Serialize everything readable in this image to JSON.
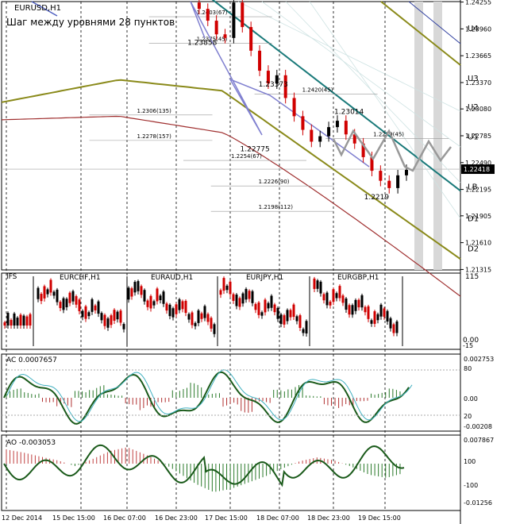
{
  "window": {
    "symbol_title": "EURUSD,H1",
    "note": "Шаг между уровнями 28 пунктов"
  },
  "price_axis": {
    "ticks": [
      "1.24255",
      "1.23960",
      "1.23665",
      "1.23370",
      "1.23080",
      "1.22785",
      "1.22490",
      "1.22195",
      "1.21905",
      "1.21610",
      "1.21315"
    ],
    "current_price": "1.22418"
  },
  "levels": [
    {
      "label": "U4",
      "price": 1.2397
    },
    {
      "label": "U3",
      "price": 1.2342
    },
    {
      "label": "U2",
      "price": 1.2311
    },
    {
      "label": "U1",
      "price": 1.2278
    },
    {
      "label": "LB",
      "price": 1.2223
    },
    {
      "label": "D1",
      "price": 1.2188
    },
    {
      "label": "D2",
      "price": 1.2155
    }
  ],
  "fibo_labels": [
    {
      "text": "1.2403(67)",
      "price": 1.2412,
      "x_time": 0.425
    },
    {
      "text": "1.2375(45)",
      "price": 1.2383,
      "x_time": 0.425
    },
    {
      "text": "1.2420(45)",
      "price": 1.2327,
      "x_time": 0.655
    },
    {
      "text": "1.2306(135)",
      "price": 1.2304,
      "x_time": 0.295
    },
    {
      "text": "1.2278(157)",
      "price": 1.2276,
      "x_time": 0.295
    },
    {
      "text": "1.2254(67)",
      "price": 1.2254,
      "x_time": 0.5
    },
    {
      "text": "1.2279(45)",
      "price": 1.2278,
      "x_time": 0.81
    },
    {
      "text": "1.2226(90)",
      "price": 1.2226,
      "x_time": 0.56
    },
    {
      "text": "1.2198(112)",
      "price": 1.2198,
      "x_time": 0.56
    }
  ],
  "swing_labels": [
    {
      "text": "1.23858",
      "price": 1.2382,
      "x_time": 0.405
    },
    {
      "text": "1.23373",
      "price": 1.2336,
      "x_time": 0.56
    },
    {
      "text": "1.22775",
      "price": 1.2265,
      "x_time": 0.52
    },
    {
      "text": "1.23014",
      "price": 1.2306,
      "x_time": 0.725
    },
    {
      "text": "1.2219",
      "price": 1.2212,
      "x_time": 0.79
    }
  ],
  "time_axis": [
    "12 Dec 2014",
    "15 Dec 15:00",
    "16 Dec 07:00",
    "16 Dec 23:00",
    "17 Dec 15:00",
    "18 Dec 07:00",
    "18 Dec 23:00",
    "19 Dec 15:00"
  ],
  "panels": {
    "ifs": {
      "title": "IFS",
      "scale_top": "115",
      "scale_bottom": "0.00",
      "scale_low": "-15",
      "pairs": [
        "EURCHF,H1",
        "EURAUD,H1",
        "EURJPY,H1",
        "EURGBP,H1"
      ]
    },
    "ac": {
      "title": "AC 0.0007657",
      "ticks": [
        "0.002753",
        "80",
        "0.00",
        "20",
        "-0.00208"
      ]
    },
    "ao": {
      "title": "AO -0.003053",
      "ticks": [
        "0.007867",
        "100",
        "-100",
        "-0.01256"
      ]
    }
  },
  "chart_data": [
    {
      "type": "line",
      "title": "EURUSD,H1",
      "ylim": [
        1.2131,
        1.2426
      ],
      "series": [
        {
          "values": [
            1.2425,
            1.2418,
            1.2405,
            1.239,
            1.2386,
            1.2425,
            1.2398,
            1.2372,
            1.235,
            1.2336,
            1.2345,
            1.232,
            1.23,
            1.2285,
            1.2272,
            1.2278,
            1.2288,
            1.2295,
            1.228,
            1.227,
            1.2255,
            1.224,
            1.2229,
            1.2221,
            1.2235,
            1.2241
          ]
        }
      ]
    },
    {
      "type": "bar",
      "title": "AC 0.0007657",
      "ylim": [
        -0.00208,
        0.002753
      ],
      "values": [
        0.0008,
        0.0005,
        -0.0004,
        -0.0009,
        0.0006,
        0.0011,
        0.0003,
        -0.0006,
        -0.0012,
        -0.0004,
        0.0009,
        0.0013,
        0.0004,
        -0.0008,
        -0.0013,
        -0.0005,
        0.0007,
        0.0012,
        0.0002,
        -0.0007,
        -0.001,
        -0.0003,
        0.0005,
        0.0008
      ]
    },
    {
      "type": "bar",
      "title": "AO -0.003053",
      "ylim": [
        -0.01256,
        0.007867
      ],
      "values": [
        0.0045,
        0.0035,
        0.0022,
        0.001,
        -0.0008,
        0.0015,
        0.004,
        0.0052,
        0.003,
        0.0005,
        -0.003,
        -0.0065,
        -0.009,
        -0.008,
        -0.006,
        -0.004,
        -0.0015,
        0.0008,
        0.002,
        0.001,
        -0.001,
        -0.0035,
        -0.0045,
        -0.003
      ]
    }
  ]
}
